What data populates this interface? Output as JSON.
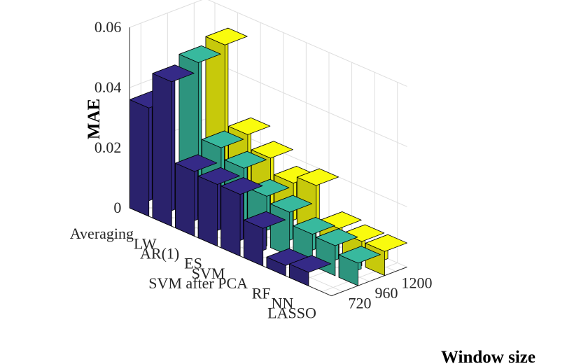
{
  "chart_data": {
    "type": "bar",
    "title": "",
    "zlabel": "MAE",
    "ylabel": "Window size",
    "categories": [
      "Averaging",
      "LW",
      "AR(1)",
      "ES",
      "SVM",
      "SVM after PCA",
      "RF",
      "NN",
      "LASSO"
    ],
    "window_sizes": [
      "720",
      "960",
      "1200"
    ],
    "zlim": [
      0,
      0.06
    ],
    "zticks": [
      "0",
      "0.02",
      "0.04",
      "0.06"
    ],
    "grid": true,
    "series": [
      {
        "name": "720",
        "color": "#352a87",
        "values": [
          0.036,
          0.048,
          0.0215,
          0.0205,
          0.0205,
          0.0125,
          0.0035,
          0.0045,
          0.0
        ]
      },
      {
        "name": "960",
        "color": "#38b99e",
        "values": [
          0.0,
          0.051,
          0.026,
          0.0225,
          0.0165,
          0.0145,
          0.0105,
          0.01,
          0.0075
        ]
      },
      {
        "name": "1200",
        "color": "#f9fb0e",
        "values": [
          0.0,
          0.0535,
          0.027,
          0.0225,
          0.0175,
          0.02,
          0.009,
          0.008,
          0.008
        ]
      }
    ]
  }
}
